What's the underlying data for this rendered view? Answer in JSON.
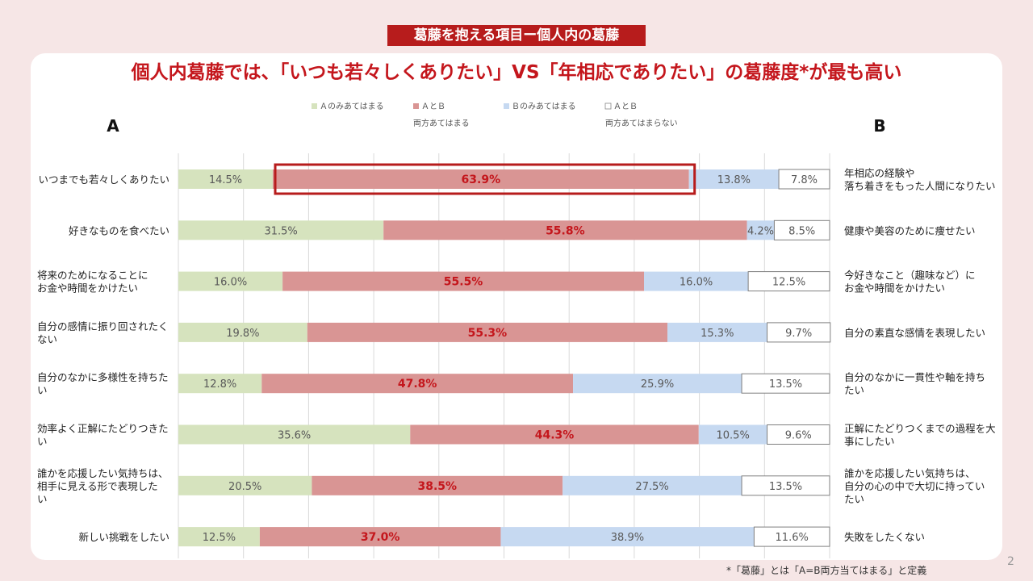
{
  "tag": "葛藤を抱える項目ー個人内の葛藤",
  "headline": "個人内葛藤では、「いつも若々しくありたい」VS「年相応でありたい」の葛藤度*が最も高い",
  "footnote": "*「葛藤」とは「A=B両方当てはまる」と定義",
  "page_number": "2",
  "colors": {
    "a_only": "#d6e3be",
    "both": "#d99594",
    "b_only": "#c6d9f1",
    "neither": "#ffffff",
    "accent": "#c4161c",
    "highlight": "#b71c1c"
  },
  "chart_data": {
    "type": "bar",
    "orientation": "horizontal-stacked-100",
    "column_labels": {
      "a": "A",
      "b": "B"
    },
    "legend": [
      {
        "key": "a_only",
        "lines": [
          "Ａのみあてはまる"
        ]
      },
      {
        "key": "both",
        "lines": [
          "ＡとＢ",
          "両方あてはまる"
        ]
      },
      {
        "key": "b_only",
        "lines": [
          "Ｂのみあてはまる"
        ]
      },
      {
        "key": "neither",
        "lines": [
          "ＡとＢ",
          "両方あてはまらない"
        ]
      }
    ],
    "xlim": [
      0,
      100
    ],
    "rows": [
      {
        "a_lines": [
          "いつまでも若々しくありたい"
        ],
        "b_lines": [
          "年相応の経験や",
          "落ち着きをもった人間になりたい"
        ],
        "values": [
          14.5,
          63.9,
          13.8,
          7.8
        ],
        "labels": [
          "14.5%",
          "63.9%",
          "13.8%",
          "7.8%"
        ],
        "highlight": true
      },
      {
        "a_lines": [
          "好きなものを食べたい"
        ],
        "b_lines": [
          "健康や美容のために痩せたい"
        ],
        "values": [
          31.5,
          55.8,
          4.2,
          8.5
        ],
        "labels": [
          "31.5%",
          "55.8%",
          "4.2%",
          "8.5%"
        ],
        "highlight": false
      },
      {
        "a_lines": [
          "将来のためになることに",
          "お金や時間をかけたい"
        ],
        "b_lines": [
          "今好きなこと（趣味など）に",
          "お金や時間をかけたい"
        ],
        "values": [
          16.0,
          55.5,
          16.0,
          12.5
        ],
        "labels": [
          "16.0%",
          "55.5%",
          "16.0%",
          "12.5%"
        ],
        "highlight": false
      },
      {
        "a_lines": [
          "自分の感情に振り回されたく",
          "ない"
        ],
        "b_lines": [
          "自分の素直な感情を表現したい"
        ],
        "values": [
          19.8,
          55.3,
          15.3,
          9.7
        ],
        "labels": [
          "19.8%",
          "55.3%",
          "15.3%",
          "9.7%"
        ],
        "highlight": false
      },
      {
        "a_lines": [
          "自分のなかに多様性を持ちた",
          "い"
        ],
        "b_lines": [
          "自分のなかに一貫性や軸を持ち",
          "たい"
        ],
        "values": [
          12.8,
          47.8,
          25.9,
          13.5
        ],
        "labels": [
          "12.8%",
          "47.8%",
          "25.9%",
          "13.5%"
        ],
        "highlight": false
      },
      {
        "a_lines": [
          "効率よく正解にたどりつきた",
          "い"
        ],
        "b_lines": [
          "正解にたどりつくまでの過程を大",
          "事にしたい"
        ],
        "values": [
          35.6,
          44.3,
          10.5,
          9.6
        ],
        "labels": [
          "35.6%",
          "44.3%",
          "10.5%",
          "9.6%"
        ],
        "highlight": false
      },
      {
        "a_lines": [
          "誰かを応援したい気持ちは、",
          "相手に見える形で表現した",
          "い"
        ],
        "b_lines": [
          "誰かを応援したい気持ちは、",
          "自分の心の中で大切に持ってい",
          "たい"
        ],
        "values": [
          20.5,
          38.5,
          27.5,
          13.5
        ],
        "labels": [
          "20.5%",
          "38.5%",
          "27.5%",
          "13.5%"
        ],
        "highlight": false
      },
      {
        "a_lines": [
          "新しい挑戦をしたい"
        ],
        "b_lines": [
          "失敗をしたくない"
        ],
        "values": [
          12.5,
          37.0,
          38.9,
          11.6
        ],
        "labels": [
          "12.5%",
          "37.0%",
          "38.9%",
          "11.6%"
        ],
        "highlight": false
      }
    ]
  }
}
